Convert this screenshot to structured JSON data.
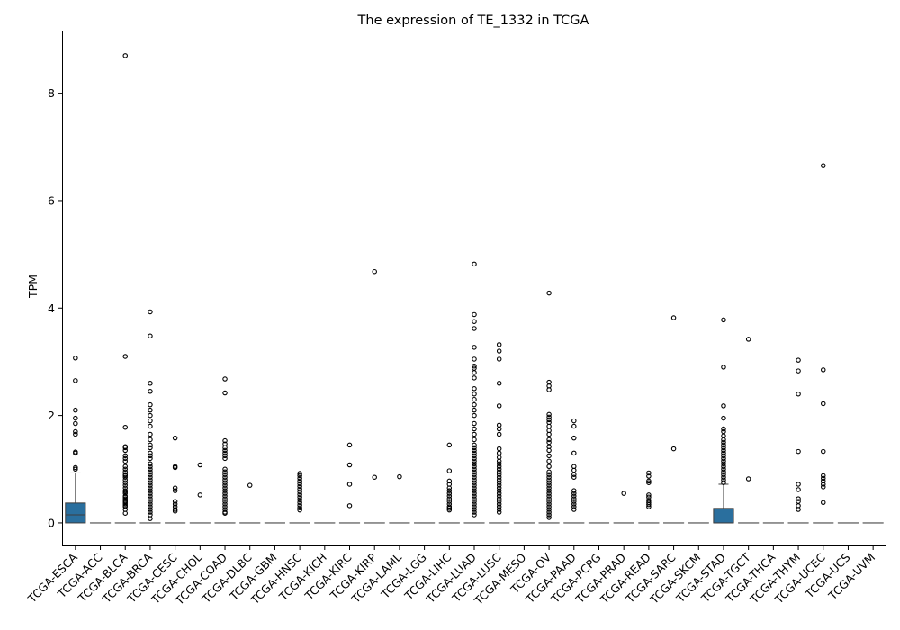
{
  "chart_data": {
    "type": "box",
    "title": "The expression of TE_1332 in TCGA",
    "xlabel": "",
    "ylabel": "TPM",
    "ylim": [
      -0.42,
      9.15
    ],
    "yticks": [
      0,
      2,
      4,
      6,
      8
    ],
    "grid": false,
    "box_color": "#2a6f9e",
    "categories": [
      "TCGA-ESCA",
      "TCGA-ACC",
      "TCGA-BLCA",
      "TCGA-BRCA",
      "TCGA-CESC",
      "TCGA-CHOL",
      "TCGA-COAD",
      "TCGA-DLBC",
      "TCGA-GBM",
      "TCGA-HNSC",
      "TCGA-KICH",
      "TCGA-KIRC",
      "TCGA-KIRP",
      "TCGA-LAML",
      "TCGA-LGG",
      "TCGA-LIHC",
      "TCGA-LUAD",
      "TCGA-LUSC",
      "TCGA-MESO",
      "TCGA-OV",
      "TCGA-PAAD",
      "TCGA-PCPG",
      "TCGA-PRAD",
      "TCGA-READ",
      "TCGA-SARC",
      "TCGA-SKCM",
      "TCGA-STAD",
      "TCGA-TGCT",
      "TCGA-THCA",
      "TCGA-THYM",
      "TCGA-UCEC",
      "TCGA-UCS",
      "TCGA-UVM"
    ],
    "boxes": [
      {
        "q1": 0,
        "median": 0.15,
        "q3": 0.37,
        "whisker_low": 0,
        "whisker_high": 0.93,
        "outliers": [
          3.07,
          2.65,
          2.1,
          1.95,
          1.85,
          1.7,
          1.65,
          1.32,
          1.3,
          1.03,
          1.0
        ]
      },
      {
        "q1": 0,
        "median": 0,
        "q3": 0,
        "whisker_low": 0,
        "whisker_high": 0,
        "outliers": []
      },
      {
        "q1": 0,
        "median": 0,
        "q3": 0,
        "whisker_low": 0,
        "whisker_high": 0,
        "outliers": [
          8.7,
          3.1,
          1.78,
          1.42,
          1.4,
          1.35,
          1.25,
          1.2,
          1.15,
          1.05,
          1.0,
          0.95,
          0.9,
          0.88,
          0.85,
          0.8,
          0.75,
          0.7,
          0.65,
          0.6,
          0.58,
          0.55,
          0.5,
          0.48,
          0.45,
          0.42,
          0.4,
          0.38,
          0.35,
          0.32,
          0.3,
          0.25,
          0.18
        ]
      },
      {
        "q1": 0,
        "median": 0,
        "q3": 0,
        "whisker_low": 0,
        "whisker_high": 0,
        "outliers": [
          3.93,
          3.48,
          2.6,
          2.45,
          2.2,
          2.1,
          2.0,
          1.9,
          1.8,
          1.65,
          1.55,
          1.45,
          1.4,
          1.3,
          1.25,
          1.2,
          1.1,
          1.05,
          1.0,
          0.95,
          0.9,
          0.85,
          0.8,
          0.75,
          0.7,
          0.65,
          0.6,
          0.55,
          0.5,
          0.45,
          0.4,
          0.35,
          0.3,
          0.25,
          0.2,
          0.15,
          0.08
        ]
      },
      {
        "q1": 0,
        "median": 0,
        "q3": 0,
        "whisker_low": 0,
        "whisker_high": 0,
        "outliers": [
          1.58,
          1.05,
          1.03,
          0.65,
          0.6,
          0.4,
          0.35,
          0.3,
          0.25,
          0.22
        ]
      },
      {
        "q1": 0,
        "median": 0,
        "q3": 0,
        "whisker_low": 0,
        "whisker_high": 0,
        "outliers": [
          1.08,
          0.52
        ]
      },
      {
        "q1": 0,
        "median": 0,
        "q3": 0,
        "whisker_low": 0,
        "whisker_high": 0,
        "outliers": [
          2.68,
          2.42,
          1.53,
          1.47,
          1.4,
          1.35,
          1.3,
          1.25,
          1.2,
          1.0,
          0.95,
          0.9,
          0.85,
          0.8,
          0.75,
          0.7,
          0.65,
          0.6,
          0.55,
          0.5,
          0.45,
          0.4,
          0.35,
          0.3,
          0.25,
          0.2,
          0.18
        ]
      },
      {
        "q1": 0,
        "median": 0,
        "q3": 0,
        "whisker_low": 0,
        "whisker_high": 0,
        "outliers": [
          0.7
        ]
      },
      {
        "q1": 0,
        "median": 0,
        "q3": 0,
        "whisker_low": 0,
        "whisker_high": 0,
        "outliers": []
      },
      {
        "q1": 0,
        "median": 0,
        "q3": 0,
        "whisker_low": 0,
        "whisker_high": 0,
        "outliers": [
          0.92,
          0.88,
          0.83,
          0.78,
          0.73,
          0.68,
          0.63,
          0.58,
          0.53,
          0.48,
          0.43,
          0.38,
          0.33,
          0.28,
          0.24
        ]
      },
      {
        "q1": 0,
        "median": 0,
        "q3": 0,
        "whisker_low": 0,
        "whisker_high": 0,
        "outliers": []
      },
      {
        "q1": 0,
        "median": 0,
        "q3": 0,
        "whisker_low": 0,
        "whisker_high": 0,
        "outliers": [
          1.45,
          1.08,
          0.72,
          0.32
        ]
      },
      {
        "q1": 0,
        "median": 0,
        "q3": 0,
        "whisker_low": 0,
        "whisker_high": 0,
        "outliers": [
          4.68,
          0.85
        ]
      },
      {
        "q1": 0,
        "median": 0,
        "q3": 0,
        "whisker_low": 0,
        "whisker_high": 0,
        "outliers": [
          0.86
        ]
      },
      {
        "q1": 0,
        "median": 0,
        "q3": 0,
        "whisker_low": 0,
        "whisker_high": 0,
        "outliers": []
      },
      {
        "q1": 0,
        "median": 0,
        "q3": 0,
        "whisker_low": 0,
        "whisker_high": 0,
        "outliers": [
          1.45,
          0.97,
          0.78,
          0.72,
          0.65,
          0.6,
          0.55,
          0.5,
          0.45,
          0.4,
          0.35,
          0.3,
          0.27,
          0.24
        ]
      },
      {
        "q1": 0,
        "median": 0,
        "q3": 0,
        "whisker_low": 0,
        "whisker_high": 0,
        "outliers": [
          4.82,
          3.88,
          3.75,
          3.62,
          3.27,
          3.05,
          2.92,
          2.88,
          2.8,
          2.7,
          2.5,
          2.4,
          2.3,
          2.2,
          2.1,
          2.0,
          1.85,
          1.75,
          1.65,
          1.55,
          1.45,
          1.4,
          1.35,
          1.3,
          1.25,
          1.2,
          1.15,
          1.1,
          1.05,
          1.0,
          0.95,
          0.9,
          0.85,
          0.8,
          0.75,
          0.7,
          0.65,
          0.6,
          0.55,
          0.5,
          0.45,
          0.4,
          0.35,
          0.3,
          0.25,
          0.2,
          0.15
        ]
      },
      {
        "q1": 0,
        "median": 0,
        "q3": 0,
        "whisker_low": 0,
        "whisker_high": 0,
        "outliers": [
          3.32,
          3.2,
          3.05,
          2.6,
          2.18,
          1.82,
          1.75,
          1.65,
          1.38,
          1.3,
          1.22,
          1.15,
          1.1,
          1.05,
          1.0,
          0.95,
          0.9,
          0.85,
          0.8,
          0.75,
          0.7,
          0.65,
          0.6,
          0.55,
          0.5,
          0.45,
          0.4,
          0.35,
          0.3,
          0.25,
          0.2
        ]
      },
      {
        "q1": 0,
        "median": 0,
        "q3": 0,
        "whisker_low": 0,
        "whisker_high": 0,
        "outliers": []
      },
      {
        "q1": 0,
        "median": 0,
        "q3": 0,
        "whisker_low": 0,
        "whisker_high": 0,
        "outliers": [
          4.28,
          2.62,
          2.55,
          2.48,
          2.02,
          1.97,
          1.92,
          1.87,
          1.8,
          1.72,
          1.65,
          1.55,
          1.5,
          1.42,
          1.35,
          1.25,
          1.15,
          1.05,
          0.95,
          0.9,
          0.85,
          0.8,
          0.75,
          0.7,
          0.65,
          0.6,
          0.55,
          0.5,
          0.45,
          0.4,
          0.35,
          0.3,
          0.25,
          0.2,
          0.15,
          0.1
        ]
      },
      {
        "q1": 0,
        "median": 0,
        "q3": 0,
        "whisker_low": 0,
        "whisker_high": 0,
        "outliers": [
          1.9,
          1.8,
          1.58,
          1.3,
          1.05,
          0.98,
          0.9,
          0.85,
          0.6,
          0.55,
          0.5,
          0.45,
          0.4,
          0.35,
          0.3,
          0.25
        ]
      },
      {
        "q1": 0,
        "median": 0,
        "q3": 0,
        "whisker_low": 0,
        "whisker_high": 0,
        "outliers": []
      },
      {
        "q1": 0,
        "median": 0,
        "q3": 0,
        "whisker_low": 0,
        "whisker_high": 0,
        "outliers": [
          0.55
        ]
      },
      {
        "q1": 0,
        "median": 0,
        "q3": 0,
        "whisker_low": 0,
        "whisker_high": 0,
        "outliers": [
          0.93,
          0.87,
          0.78,
          0.75,
          0.52,
          0.48,
          0.42,
          0.38,
          0.34,
          0.3
        ]
      },
      {
        "q1": 0,
        "median": 0,
        "q3": 0,
        "whisker_low": 0,
        "whisker_high": 0,
        "outliers": [
          3.82,
          1.38
        ]
      },
      {
        "q1": 0,
        "median": 0,
        "q3": 0,
        "whisker_low": 0,
        "whisker_high": 0,
        "outliers": []
      },
      {
        "q1": 0,
        "median": 0,
        "q3": 0.27,
        "whisker_low": 0,
        "whisker_high": 0.72,
        "outliers": [
          3.78,
          2.9,
          2.18,
          1.95,
          1.75,
          1.7,
          1.62,
          1.55,
          1.5,
          1.45,
          1.4,
          1.35,
          1.3,
          1.25,
          1.2,
          1.15,
          1.1,
          1.05,
          1.0,
          0.95,
          0.9,
          0.85,
          0.8,
          0.75
        ]
      },
      {
        "q1": 0,
        "median": 0,
        "q3": 0,
        "whisker_low": 0,
        "whisker_high": 0,
        "outliers": [
          3.42,
          0.82
        ]
      },
      {
        "q1": 0,
        "median": 0,
        "q3": 0,
        "whisker_low": 0,
        "whisker_high": 0,
        "outliers": []
      },
      {
        "q1": 0,
        "median": 0,
        "q3": 0,
        "whisker_low": 0,
        "whisker_high": 0,
        "outliers": [
          3.03,
          2.83,
          2.4,
          1.33,
          0.72,
          0.62,
          0.45,
          0.4,
          0.32,
          0.25
        ]
      },
      {
        "q1": 0,
        "median": 0,
        "q3": 0,
        "whisker_low": 0,
        "whisker_high": 0,
        "outliers": [
          6.65,
          2.85,
          2.22,
          1.33,
          0.88,
          0.83,
          0.78,
          0.72,
          0.67,
          0.38
        ]
      },
      {
        "q1": 0,
        "median": 0,
        "q3": 0,
        "whisker_low": 0,
        "whisker_high": 0,
        "outliers": []
      },
      {
        "q1": 0,
        "median": 0,
        "q3": 0,
        "whisker_low": 0,
        "whisker_high": 0,
        "outliers": []
      }
    ]
  }
}
